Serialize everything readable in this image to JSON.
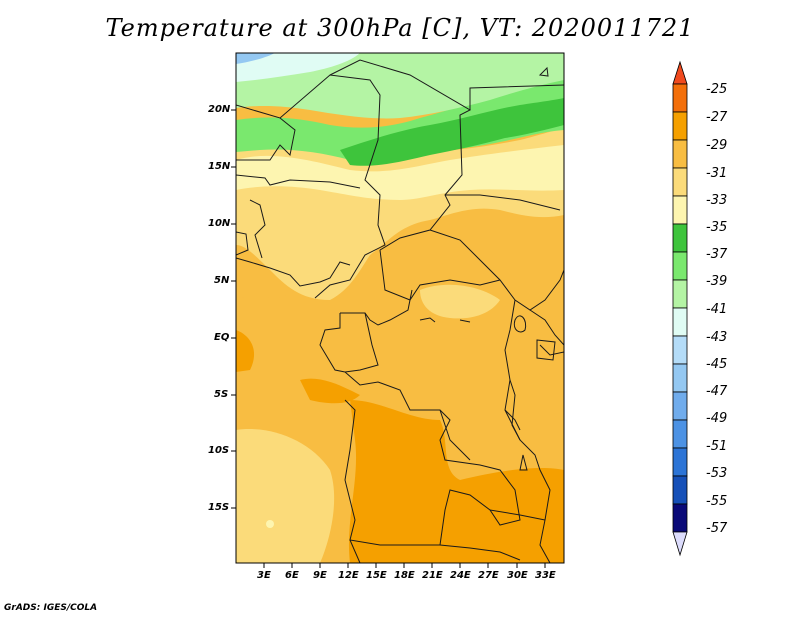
{
  "title": "Temperature at 300hPa [C], VT: 2020011721",
  "credit": "GrADS: IGES/COLA",
  "map": {
    "lat_ticks": [
      "20N",
      "15N",
      "10N",
      "5N",
      "EQ",
      "5S",
      "10S",
      "15S"
    ],
    "lon_ticks": [
      "3E",
      "6E",
      "9E",
      "12E",
      "15E",
      "18E",
      "21E",
      "24E",
      "27E",
      "30E",
      "33E"
    ]
  },
  "colorbar": {
    "labels": [
      "-25",
      "-27",
      "-29",
      "-31",
      "-33",
      "-35",
      "-37",
      "-39",
      "-41",
      "-43",
      "-45",
      "-47",
      "-49",
      "-51",
      "-53",
      "-55",
      "-57"
    ],
    "colors": {
      "above_-25": "#f04a1e",
      "-27_-25": "#f36f0a",
      "-29_-27": "#f5a000",
      "-31_-29": "#f8bd42",
      "-33_-31": "#fbdb7a",
      "-35_-33": "#fdf5b0",
      "-37_-35": "#3ec43c",
      "-39_-37": "#7ae86e",
      "-41_-39": "#b4f4a4",
      "-43_-41": "#e0fcf4",
      "-45_-43": "#b4dcf8",
      "-47_-45": "#94c8f2",
      "-49_-47": "#70acec",
      "-51_-49": "#4c92e4",
      "-53_-51": "#2c74d6",
      "-55_-53": "#1650b8",
      "-57_-55": "#0a0a78",
      "below_-57": "#dcdcfc"
    }
  }
}
